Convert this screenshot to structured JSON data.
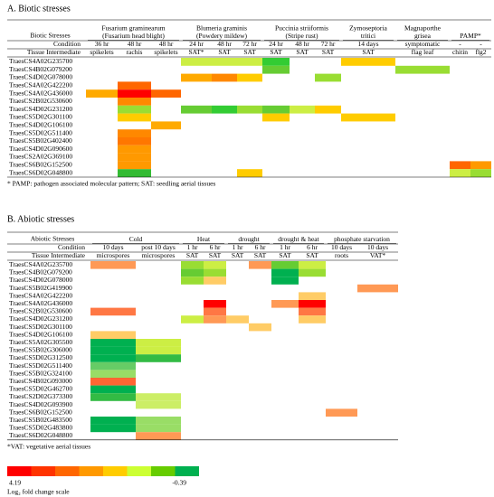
{
  "panels": [
    {
      "title": "A. Biotic stresses",
      "header_labels": [
        "Biotic Stresses",
        "Condition",
        "Tissue Intermediate"
      ],
      "groups": [
        {
          "lines": [
            "Fusarium graminearum",
            "(Fusarium head blight)"
          ],
          "columns": [
            {
              "condition": "36 hr",
              "tissue": "spikelets"
            },
            {
              "condition": "48 hr",
              "tissue": "rachis"
            },
            {
              "condition": "48 hr",
              "tissue": "spikelets"
            }
          ]
        },
        {
          "lines": [
            "Blumeria graminis",
            "(Powdery mildew)"
          ],
          "columns": [
            {
              "condition": "24 hr",
              "tissue": "SAT*"
            },
            {
              "condition": "48 hr",
              "tissue": "SAT"
            },
            {
              "condition": "72 hr",
              "tissue": "SAT"
            }
          ]
        },
        {
          "lines": [
            "Puccinia striiformis",
            "(Stripe rust)"
          ],
          "columns": [
            {
              "condition": "24 hr",
              "tissue": "SAT"
            },
            {
              "condition": "48 hr",
              "tissue": "SAT"
            },
            {
              "condition": "72 hr",
              "tissue": "SAT"
            }
          ]
        },
        {
          "lines": [
            "Zymoseptoria",
            "tritici"
          ],
          "columns": [
            {
              "condition": "14 days",
              "tissue": "SAT"
            }
          ]
        },
        {
          "lines": [
            "Magnaporthe",
            "grisea"
          ],
          "columns": [
            {
              "condition": "symptomatic",
              "tissue": "flag leaf"
            }
          ]
        },
        {
          "lines": [
            "PAMP*"
          ],
          "columns": [
            {
              "condition": "-",
              "tissue": "chitin"
            },
            {
              "condition": "-",
              "tissue": "flg2"
            }
          ]
        }
      ],
      "rows": [
        {
          "gene": "TraesCS4A02G235700",
          "cells": [
            null,
            null,
            null,
            "#ccee44",
            "#ccee44",
            "#ccee44",
            "#33cc33",
            null,
            null,
            "#ffcc00",
            null,
            null,
            null
          ]
        },
        {
          "gene": "TraesCS4B02G079200",
          "cells": [
            null,
            null,
            null,
            null,
            null,
            null,
            "#66cc33",
            null,
            null,
            null,
            "#99dd33",
            null,
            null
          ]
        },
        {
          "gene": "TraesCS4D02G078000",
          "cells": [
            null,
            null,
            null,
            "#ffaa00",
            "#ff8800",
            "#ffcc00",
            null,
            null,
            "#99dd33",
            null,
            null,
            null,
            null
          ]
        },
        {
          "gene": "TraesCS4A02G422200",
          "cells": [
            null,
            "#ff6600",
            null,
            null,
            null,
            null,
            null,
            null,
            null,
            null,
            null,
            null,
            null
          ]
        },
        {
          "gene": "TraesCS4A02G436000",
          "cells": [
            "#ffaa00",
            "#ff0000",
            "#ff6600",
            null,
            null,
            null,
            null,
            null,
            null,
            null,
            null,
            null,
            null
          ]
        },
        {
          "gene": "TraesCS2B02G530600",
          "cells": [
            null,
            "#ff8800",
            null,
            null,
            null,
            null,
            null,
            null,
            null,
            null,
            null,
            null,
            null
          ]
        },
        {
          "gene": "TraesCS4D02G231200",
          "cells": [
            null,
            "#99dd33",
            null,
            "#66cc33",
            "#33cc33",
            "#99dd33",
            "#66cc33",
            "#ccee44",
            "#ffcc00",
            null,
            null,
            null,
            null
          ]
        },
        {
          "gene": "TraesCS5D02G301100",
          "cells": [
            null,
            "#ffcc00",
            null,
            null,
            null,
            null,
            "#ffcc00",
            null,
            null,
            "#ffcc00",
            null,
            null,
            null
          ]
        },
        {
          "gene": "TraesCS4D02G106100",
          "cells": [
            null,
            null,
            "#ffaa00",
            null,
            null,
            null,
            null,
            null,
            null,
            null,
            null,
            null,
            null
          ]
        },
        {
          "gene": "TraesCS5D02G511400",
          "cells": [
            null,
            "#ff8800",
            null,
            null,
            null,
            null,
            null,
            null,
            null,
            null,
            null,
            null,
            null
          ]
        },
        {
          "gene": "TraesCS5B02G402400",
          "cells": [
            null,
            "#ff7700",
            null,
            null,
            null,
            null,
            null,
            null,
            null,
            null,
            null,
            null,
            null
          ]
        },
        {
          "gene": "TraesCS4D02G090600",
          "cells": [
            null,
            "#ff9900",
            null,
            null,
            null,
            null,
            null,
            null,
            null,
            null,
            null,
            null,
            null
          ]
        },
        {
          "gene": "TraesCS2A02G369100",
          "cells": [
            null,
            "#ff9900",
            null,
            null,
            null,
            null,
            null,
            null,
            null,
            null,
            null,
            null,
            null
          ]
        },
        {
          "gene": "TraesCS6B02G152500",
          "cells": [
            null,
            "#ff9900",
            null,
            null,
            null,
            null,
            null,
            null,
            null,
            null,
            null,
            "#ff6600",
            "#ff9900"
          ]
        },
        {
          "gene": "TraesCS6D02G048800",
          "cells": [
            null,
            "#33bb33",
            null,
            null,
            null,
            "#ffcc00",
            null,
            null,
            null,
            null,
            null,
            "#ccee44",
            "#99dd33"
          ]
        }
      ],
      "footnote": "* PAMP: pathogen associated molecular pattern; SAT: seedling aerial tissues"
    },
    {
      "title": "B. Abiotic stresses",
      "header_labels": [
        "Abiotic Stresses",
        "Condition",
        "Tissue Intermediate"
      ],
      "groups": [
        {
          "lines": [
            "Cold"
          ],
          "columns": [
            {
              "condition": "10 days",
              "tissue": "microspores"
            },
            {
              "condition": "post 10 days",
              "tissue": "microspores"
            }
          ]
        },
        {
          "lines": [
            "Heat"
          ],
          "columns": [
            {
              "condition": "1 hr",
              "tissue": "SAT"
            },
            {
              "condition": "6 hr",
              "tissue": "SAT"
            }
          ]
        },
        {
          "lines": [
            "drought"
          ],
          "columns": [
            {
              "condition": "1 hr",
              "tissue": "SAT"
            },
            {
              "condition": "6 hr",
              "tissue": "SAT"
            }
          ]
        },
        {
          "lines": [
            "drought & heat"
          ],
          "columns": [
            {
              "condition": "1 hr",
              "tissue": "SAT"
            },
            {
              "condition": "6 hr",
              "tissue": "SAT"
            }
          ]
        },
        {
          "lines": [
            "phosphate starvation"
          ],
          "columns": [
            {
              "condition": "10 days",
              "tissue": "roots"
            },
            {
              "condition": "10 days",
              "tissue": "VAT*"
            }
          ]
        }
      ],
      "rows": [
        {
          "gene": "TraesCS4A02G235700",
          "cells": [
            "#ff9955",
            null,
            "#99dd33",
            "#ccee44",
            null,
            "#ff9955",
            "#66cc33",
            "#ccee44",
            null,
            null
          ]
        },
        {
          "gene": "TraesCS4B02G079200",
          "cells": [
            null,
            null,
            "#66cc33",
            "#99dd33",
            null,
            null,
            "#00b050",
            "#99dd33",
            null,
            null
          ]
        },
        {
          "gene": "TraesCS4D02G078000",
          "cells": [
            null,
            null,
            "#99dd33",
            "#ffcc66",
            null,
            null,
            "#00b050",
            null,
            null,
            null
          ]
        },
        {
          "gene": "TraesCS5B02G419900",
          "cells": [
            null,
            null,
            null,
            null,
            null,
            null,
            null,
            null,
            null,
            "#ff9955"
          ]
        },
        {
          "gene": "TraesCS4A02G422200",
          "cells": [
            null,
            null,
            null,
            null,
            null,
            null,
            null,
            "#ffcc66",
            null,
            null
          ]
        },
        {
          "gene": "TraesCS4A02G436000",
          "cells": [
            null,
            null,
            null,
            "#ff0000",
            null,
            null,
            "#ff9955",
            "#ff0000",
            null,
            null
          ]
        },
        {
          "gene": "TraesCS2B02G530600",
          "cells": [
            "#ff7744",
            null,
            null,
            "#ff7744",
            null,
            null,
            null,
            "#ff7744",
            null,
            null
          ]
        },
        {
          "gene": "TraesCS4D02G231200",
          "cells": [
            null,
            null,
            "#ccee44",
            "#ff9955",
            "#ffcc66",
            null,
            null,
            "#ffcc66",
            null,
            null
          ]
        },
        {
          "gene": "TraesCS5D02G301100",
          "cells": [
            null,
            null,
            null,
            null,
            null,
            "#ffcc66",
            null,
            null,
            null,
            null
          ]
        },
        {
          "gene": "TraesCS4D02G106100",
          "cells": [
            "#ffcc66",
            null,
            null,
            null,
            null,
            null,
            null,
            null,
            null,
            null
          ]
        },
        {
          "gene": "TraesCS5A02G305500",
          "cells": [
            "#00b050",
            "#ccee44",
            null,
            null,
            null,
            null,
            null,
            null,
            null,
            null
          ]
        },
        {
          "gene": "TraesCS5B02G306000",
          "cells": [
            "#00b050",
            "#ccee44",
            null,
            null,
            null,
            null,
            null,
            null,
            null,
            null
          ]
        },
        {
          "gene": "TraesCS5D02G312500",
          "cells": [
            "#00b050",
            "#33bb44",
            null,
            null,
            null,
            null,
            null,
            null,
            null,
            null
          ]
        },
        {
          "gene": "TraesCS5D02G511400",
          "cells": [
            "#66cc66",
            null,
            null,
            null,
            null,
            null,
            null,
            null,
            null,
            null
          ]
        },
        {
          "gene": "TraesCS5B02G324100",
          "cells": [
            "#99dd66",
            null,
            null,
            null,
            null,
            null,
            null,
            null,
            null,
            null
          ]
        },
        {
          "gene": "TraesCS4B02G093000",
          "cells": [
            "#ff6633",
            null,
            null,
            null,
            null,
            null,
            null,
            null,
            null,
            null
          ]
        },
        {
          "gene": "TraesCS5D02G462700",
          "cells": [
            "#00b050",
            null,
            null,
            null,
            null,
            null,
            null,
            null,
            null,
            null
          ]
        },
        {
          "gene": "TraesCS2D02G373300",
          "cells": [
            "#33bb44",
            "#ccee66",
            null,
            null,
            null,
            null,
            null,
            null,
            null,
            null
          ]
        },
        {
          "gene": "TraesCS4D02G093900",
          "cells": [
            null,
            "#ccee66",
            null,
            null,
            null,
            null,
            null,
            null,
            null,
            null
          ]
        },
        {
          "gene": "TraesCS6B02G152500",
          "cells": [
            null,
            null,
            null,
            null,
            null,
            null,
            null,
            null,
            "#ff9955",
            null
          ]
        },
        {
          "gene": "TraesCS5B02G483500",
          "cells": [
            "#00b050",
            "#99dd66",
            null,
            null,
            null,
            null,
            null,
            null,
            null,
            null
          ]
        },
        {
          "gene": "TraesCS5D02G483800",
          "cells": [
            "#00b050",
            "#99dd66",
            null,
            null,
            null,
            null,
            null,
            null,
            null,
            null
          ]
        },
        {
          "gene": "TraesCS6D02G048800",
          "cells": [
            null,
            "#ff9955",
            null,
            null,
            null,
            null,
            null,
            null,
            null,
            null
          ]
        }
      ],
      "footnote": "*VAT: vegetative aerial tissues"
    }
  ],
  "scale": {
    "colors": [
      "#ff0000",
      "#ff3300",
      "#ff6600",
      "#ff9900",
      "#ffcc00",
      "#ccff33",
      "#66cc00",
      "#00b050"
    ],
    "max_label": "4.19",
    "min_label": "-0.39",
    "caption": "Log₂ fold change scale"
  }
}
